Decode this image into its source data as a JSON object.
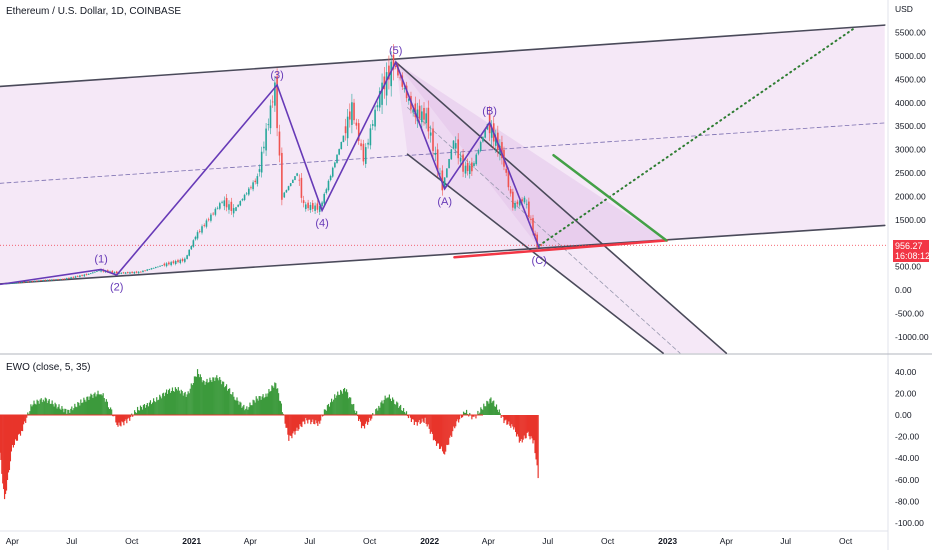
{
  "chart_data": [
    {
      "type": "candlestick",
      "title": "Ethereum / U.S. Dollar, 1D, COINBASE",
      "currency_label": "USD",
      "y_ticks": [
        5500,
        5000,
        4500,
        4000,
        3500,
        3000,
        2500,
        2000,
        1500,
        1000,
        500,
        0,
        -500,
        -1000
      ],
      "y_tick_labels": [
        "5500.00",
        "5000.00",
        "4500.00",
        "4000.00",
        "3500.00",
        "3000.00",
        "2500.00",
        "2000.00",
        "1500.00",
        "",
        "500.00",
        "0.00",
        "-500.00",
        "-1000.00"
      ],
      "ylim": [
        -1100,
        6000
      ],
      "x_ticks": [
        "Apr",
        "Jul",
        "Oct",
        "2021",
        "Apr",
        "Jul",
        "Oct",
        "2022",
        "Apr",
        "Jul",
        "Oct",
        "2023",
        "Apr",
        "Jul",
        "Oct"
      ],
      "x_tick_dates": [
        "2020-04-01",
        "2020-07-01",
        "2020-10-01",
        "2021-01-01",
        "2021-04-01",
        "2021-07-01",
        "2021-10-01",
        "2022-01-01",
        "2022-04-01",
        "2022-07-01",
        "2022-10-01",
        "2023-01-01",
        "2023-04-01",
        "2023-07-01",
        "2023-10-01"
      ],
      "last_price": "956.27",
      "countdown": "16:08:12",
      "price_series": [
        [
          "2020-03-20",
          130
        ],
        [
          "2020-05-15",
          200
        ],
        [
          "2020-06-20",
          230
        ],
        [
          "2020-07-27",
          330
        ],
        [
          "2020-08-15",
          420
        ],
        [
          "2020-09-15",
          360
        ],
        [
          "2020-10-15",
          380
        ],
        [
          "2020-11-20",
          530
        ],
        [
          "2020-12-25",
          650
        ],
        [
          "2021-01-10",
          1150
        ],
        [
          "2021-02-20",
          1900
        ],
        [
          "2021-03-10",
          1700
        ],
        [
          "2021-04-15",
          2400
        ],
        [
          "2021-05-12",
          4350
        ],
        [
          "2021-05-23",
          2000
        ],
        [
          "2021-06-15",
          2500
        ],
        [
          "2021-06-25",
          1800
        ],
        [
          "2021-07-20",
          1750
        ],
        [
          "2021-08-25",
          3300
        ],
        [
          "2021-09-07",
          3900
        ],
        [
          "2021-09-25",
          2800
        ],
        [
          "2021-10-20",
          4200
        ],
        [
          "2021-11-10",
          4850
        ],
        [
          "2021-12-10",
          3800
        ],
        [
          "2021-12-30",
          3700
        ],
        [
          "2022-01-24",
          2200
        ],
        [
          "2022-02-10",
          3200
        ],
        [
          "2022-02-25",
          2600
        ],
        [
          "2022-03-10",
          2600
        ],
        [
          "2022-04-03",
          3550
        ],
        [
          "2022-04-25",
          2900
        ],
        [
          "2022-05-12",
          1800
        ],
        [
          "2022-05-30",
          1950
        ],
        [
          "2022-06-18",
          950
        ],
        [
          "2022-06-25",
          956
        ]
      ],
      "wave_labels": [
        {
          "text": "(1)",
          "date": "2020-08-15",
          "price": 420
        },
        {
          "text": "(2)",
          "date": "2020-09-08",
          "price": 330
        },
        {
          "text": "(3)",
          "date": "2021-05-12",
          "price": 4350
        },
        {
          "text": "(4)",
          "date": "2021-07-20",
          "price": 1700
        },
        {
          "text": "(5)",
          "date": "2021-11-10",
          "price": 4870
        },
        {
          "text": "(A)",
          "date": "2022-01-24",
          "price": 2160
        },
        {
          "text": "(B)",
          "date": "2022-04-03",
          "price": 3580
        },
        {
          "text": "(C)",
          "date": "2022-06-18",
          "price": 900
        }
      ],
      "wave_path": [
        [
          "2020-03-13",
          120
        ],
        [
          "2020-08-15",
          440
        ],
        [
          "2020-09-08",
          320
        ],
        [
          "2021-05-12",
          4380
        ],
        [
          "2021-07-20",
          1700
        ],
        [
          "2021-11-10",
          4870
        ],
        [
          "2022-01-24",
          2160
        ],
        [
          "2022-04-03",
          3580
        ],
        [
          "2022-06-18",
          900
        ]
      ],
      "channels": [
        {
          "name": "upper",
          "from": [
            "2020-03-13",
            4350
          ],
          "to": [
            "2023-11-30",
            5660
          ]
        },
        {
          "name": "mid",
          "from": [
            "2020-03-13",
            2280
          ],
          "to": [
            "2023-11-30",
            3570
          ]
        },
        {
          "name": "lower",
          "from": [
            "2020-03-13",
            130
          ],
          "to": [
            "2023-11-30",
            1380
          ]
        },
        {
          "name": "down-upper",
          "from": [
            "2021-11-10",
            4870
          ],
          "to": [
            "2023-04-01",
            -1350
          ]
        },
        {
          "name": "down-lower",
          "from": [
            "2021-11-28",
            2900
          ],
          "to": [
            "2022-12-25",
            -1350
          ]
        },
        {
          "name": "down-mid",
          "from": [
            "2021-11-28",
            3900
          ],
          "to": [
            "2023-01-20",
            -1350
          ]
        },
        {
          "name": "projection",
          "from": [
            "2022-06-18",
            950
          ],
          "to": [
            "2023-10-15",
            5600
          ]
        },
        {
          "name": "red-support",
          "from": [
            "2022-02-08",
            700
          ],
          "to": [
            "2022-12-31",
            1060
          ]
        },
        {
          "name": "green-resistance",
          "from": [
            "2022-07-10",
            2880
          ],
          "to": [
            "2022-12-30",
            1060
          ]
        }
      ],
      "colors": {
        "up": "#26a69a",
        "down": "#ef5350",
        "channel_fill": "#e1bee7",
        "wave": "#673ab7",
        "support": "#f23645",
        "resistance": "#43a047",
        "projection": "#2e7d32"
      }
    },
    {
      "type": "area",
      "title": "EWO (close, 5, 35)",
      "y_ticks": [
        40,
        20,
        0,
        -20,
        -40,
        -60,
        -80,
        -100
      ],
      "y_tick_labels": [
        "40.00",
        "20.00",
        "0.00",
        "-20.00",
        "-40.00",
        "-60.00",
        "-80.00",
        "-100.00"
      ],
      "ylim": [
        -105,
        48
      ],
      "series": [
        [
          "2020-03-13",
          -35
        ],
        [
          "2020-03-20",
          -80
        ],
        [
          "2020-04-01",
          -30
        ],
        [
          "2020-04-15",
          -15
        ],
        [
          "2020-05-01",
          10
        ],
        [
          "2020-05-20",
          15
        ],
        [
          "2020-06-10",
          8
        ],
        [
          "2020-06-25",
          3
        ],
        [
          "2020-07-15",
          12
        ],
        [
          "2020-08-01",
          18
        ],
        [
          "2020-08-15",
          21
        ],
        [
          "2020-08-28",
          8
        ],
        [
          "2020-09-10",
          -10
        ],
        [
          "2020-09-25",
          -5
        ],
        [
          "2020-10-10",
          5
        ],
        [
          "2020-10-25",
          10
        ],
        [
          "2020-11-10",
          15
        ],
        [
          "2020-11-25",
          22
        ],
        [
          "2020-12-10",
          24
        ],
        [
          "2020-12-25",
          18
        ],
        [
          "2021-01-10",
          40
        ],
        [
          "2021-01-20",
          30
        ],
        [
          "2021-02-10",
          35
        ],
        [
          "2021-02-25",
          25
        ],
        [
          "2021-03-10",
          15
        ],
        [
          "2021-03-25",
          5
        ],
        [
          "2021-04-10",
          15
        ],
        [
          "2021-04-25",
          18
        ],
        [
          "2021-05-10",
          30
        ],
        [
          "2021-05-20",
          5
        ],
        [
          "2021-05-30",
          -22
        ],
        [
          "2021-06-10",
          -15
        ],
        [
          "2021-06-25",
          -5
        ],
        [
          "2021-07-15",
          -8
        ],
        [
          "2021-07-25",
          5
        ],
        [
          "2021-08-10",
          18
        ],
        [
          "2021-08-25",
          24
        ],
        [
          "2021-09-05",
          10
        ],
        [
          "2021-09-20",
          -12
        ],
        [
          "2021-10-01",
          -5
        ],
        [
          "2021-10-15",
          8
        ],
        [
          "2021-10-28",
          18
        ],
        [
          "2021-11-10",
          12
        ],
        [
          "2021-11-25",
          2
        ],
        [
          "2021-12-10",
          -8
        ],
        [
          "2021-12-25",
          -5
        ],
        [
          "2022-01-10",
          -25
        ],
        [
          "2022-01-24",
          -35
        ],
        [
          "2022-02-10",
          -8
        ],
        [
          "2022-02-25",
          3
        ],
        [
          "2022-03-10",
          -3
        ],
        [
          "2022-03-25",
          8
        ],
        [
          "2022-04-05",
          15
        ],
        [
          "2022-04-15",
          6
        ],
        [
          "2022-04-25",
          -5
        ],
        [
          "2022-05-10",
          -12
        ],
        [
          "2022-05-20",
          -25
        ],
        [
          "2022-06-01",
          -18
        ],
        [
          "2022-06-10",
          -25
        ],
        [
          "2022-06-18",
          -65
        ]
      ],
      "color_positive": "#3c9a3c",
      "color_negative": "#e8342b"
    }
  ]
}
